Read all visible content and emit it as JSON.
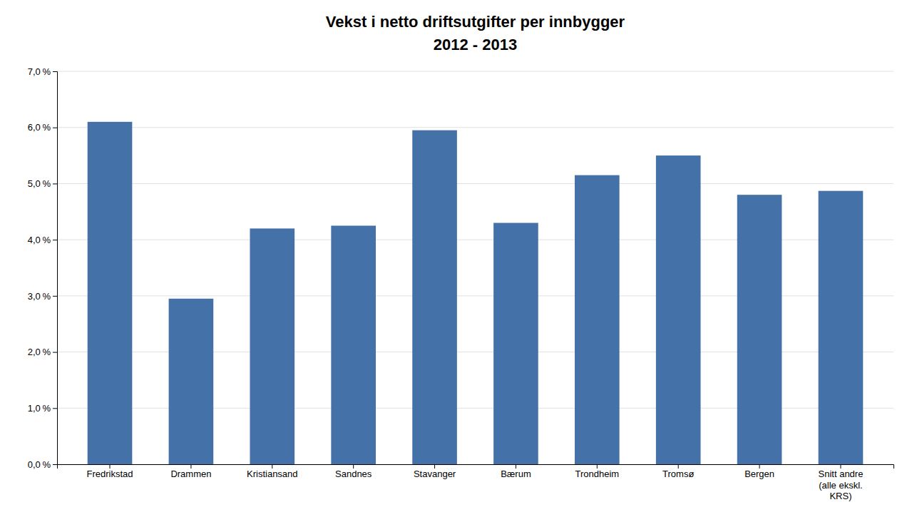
{
  "chart_data": {
    "type": "bar",
    "title": "Vekst i netto driftsutgifter per innbygger",
    "subtitle": "2012 - 2013",
    "categories": [
      "Fredrikstad",
      "Drammen",
      "Kristiansand",
      "Sandnes",
      "Stavanger",
      "Bærum",
      "Trondheim",
      "Tromsø",
      "Bergen",
      "Snitt andre\n(alle ekskl.\nKRS)"
    ],
    "values": [
      0.061,
      0.0295,
      0.042,
      0.0425,
      0.0595,
      0.043,
      0.0515,
      0.055,
      0.048,
      0.0487
    ],
    "color": "#4472a8",
    "ylim": [
      0,
      0.07
    ],
    "yticks": [
      {
        "value": 0.0,
        "label": "0,0 %"
      },
      {
        "value": 0.01,
        "label": "1,0 %"
      },
      {
        "value": 0.02,
        "label": "2,0 %"
      },
      {
        "value": 0.03,
        "label": "3,0 %"
      },
      {
        "value": 0.04,
        "label": "4,0 %"
      },
      {
        "value": 0.05,
        "label": "5,0 %"
      },
      {
        "value": 0.06,
        "label": "6,0 %"
      },
      {
        "value": 0.07,
        "label": "7,0 %"
      }
    ],
    "grid": true
  }
}
